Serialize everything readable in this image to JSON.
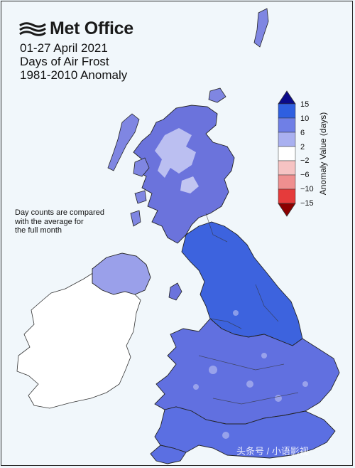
{
  "logo": {
    "text": "Met Office",
    "icon": "met-office-swirl-icon"
  },
  "title": {
    "line1": "01-27 April 2021",
    "line2": "Days of Air Frost",
    "line3": "1981-2010 Anomaly"
  },
  "note": {
    "line1": "Day counts are compared",
    "line2": "with the average for",
    "line3": "the full month"
  },
  "colorbar": {
    "title": "Anomaly Value (days)",
    "ticks": [
      "15",
      "10",
      "6",
      "2",
      "−2",
      "−6",
      "−10",
      "−15"
    ],
    "colors": [
      "#0b0b8a",
      "#2f5fe0",
      "#6f7fe6",
      "#a9b0f0",
      "#ffffff",
      "#f6c3c3",
      "#ef8f8f",
      "#e53b3b",
      "#8b0000"
    ]
  },
  "map_colors": {
    "ireland": "#ffffff",
    "scotland_highlands": "#6b73dc",
    "scotland_peaks": "#c9ccf4",
    "north_england": "#3d63de",
    "midlands": "#6170e0",
    "south": "#5b6fe2",
    "northern_ireland": "#9aa0ea"
  },
  "watermark": "头条号 / 小语影视"
}
